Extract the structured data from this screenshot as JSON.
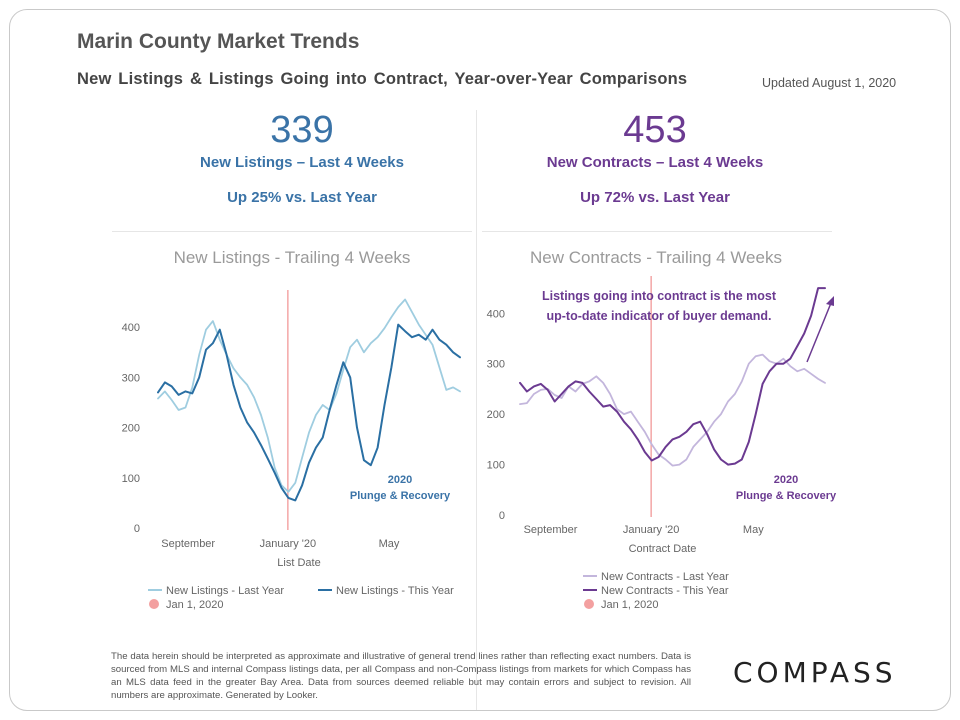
{
  "page": {
    "title": "Marin County Market Trends",
    "subtitle": "New Listings & Listings Going into Contract, Year-over-Year Comparisons",
    "updated": "Updated August 1, 2020",
    "footer": "The data herein should be interpreted as approximate and illustrative of general trend lines rather than reflecting exact numbers. Data is sourced from MLS and internal Compass listings data, per all Compass and non-Compass listings from markets for which Compass has an MLS data feed in the greater Bay Area. Data from sources deemed reliable but may contain errors and subject to revision. All numbers are approximate. Generated by Looker.",
    "logo": "COMPASS"
  },
  "kpis": {
    "listings": {
      "value": "339",
      "label": "New Listings – Last 4 Weeks",
      "change": "Up 25% vs. Last Year"
    },
    "contracts": {
      "value": "453",
      "label": "New Contracts – Last 4 Weeks",
      "change": "Up 72% vs. Last Year"
    }
  },
  "colors": {
    "listings_last": "#9fcde0",
    "listings_this": "#2a6fa3",
    "contracts_last": "#c3b6dc",
    "contracts_this": "#6b3a91",
    "jan_marker": "#f3a0a0",
    "listings_text": "#3a73a7",
    "contracts_text": "#6b3a91"
  },
  "chart_data": [
    {
      "type": "line",
      "title": "New Listings - Trailing 4 Weeks",
      "xlabel": "List Date",
      "ylabel": "",
      "ylim": [
        0,
        470
      ],
      "yticks": [
        0,
        100,
        200,
        300,
        400
      ],
      "x_tick_labels": [
        "September",
        "January '20",
        "May"
      ],
      "x_tick_positions": [
        0.1,
        0.43,
        0.765
      ],
      "marker_x": 0.43,
      "marker_label": "Jan 1, 2020",
      "annotation": [
        "2020",
        "Plunge & Recovery"
      ],
      "grid": false,
      "legend_placement": "bottom",
      "series": [
        {
          "name": "New Listings - Last Year",
          "color_key": "listings_last",
          "values": [
            258,
            272,
            255,
            235,
            240,
            280,
            345,
            395,
            412,
            375,
            345,
            318,
            300,
            285,
            260,
            225,
            180,
            120,
            85,
            72,
            90,
            140,
            190,
            225,
            245,
            235,
            268,
            315,
            360,
            375,
            350,
            368,
            380,
            398,
            420,
            440,
            455,
            430,
            405,
            385,
            365,
            320,
            275,
            280,
            272
          ]
        },
        {
          "name": "New Listings - This Year",
          "color_key": "listings_this",
          "values": [
            270,
            290,
            282,
            265,
            272,
            268,
            300,
            355,
            368,
            395,
            345,
            285,
            240,
            210,
            190,
            165,
            138,
            110,
            80,
            60,
            55,
            85,
            130,
            160,
            180,
            235,
            285,
            330,
            300,
            200,
            135,
            125,
            160,
            245,
            320,
            405,
            392,
            380,
            385,
            375,
            395,
            375,
            365,
            350,
            340
          ]
        }
      ]
    },
    {
      "type": "line",
      "title": "New Contracts - Trailing 4 Weeks",
      "xlabel": "Contract Date",
      "ylabel": "",
      "ylim": [
        0,
        470
      ],
      "yticks": [
        0,
        100,
        200,
        300,
        400
      ],
      "x_tick_labels": [
        "September",
        "January '20",
        "May"
      ],
      "x_tick_positions": [
        0.1,
        0.43,
        0.765
      ],
      "marker_x": 0.43,
      "marker_label": "Jan 1, 2020",
      "annotation": [
        "2020",
        "Plunge & Recovery"
      ],
      "callout": [
        "Listings going into contract is the most",
        "up-to-date indicator of buyer demand."
      ],
      "grid": false,
      "legend_placement": "bottom",
      "series": [
        {
          "name": "New Contracts - Last Year",
          "color_key": "contracts_last",
          "values": [
            220,
            222,
            240,
            248,
            250,
            238,
            232,
            255,
            245,
            260,
            265,
            275,
            262,
            240,
            210,
            200,
            205,
            185,
            165,
            140,
            120,
            110,
            98,
            100,
            110,
            135,
            150,
            165,
            185,
            200,
            225,
            240,
            265,
            300,
            315,
            318,
            305,
            300,
            310,
            295,
            285,
            290,
            280,
            270,
            262
          ]
        },
        {
          "name": "New Contracts - This Year",
          "color_key": "contracts_this",
          "values": [
            262,
            245,
            255,
            260,
            248,
            225,
            240,
            255,
            265,
            262,
            245,
            230,
            215,
            218,
            205,
            185,
            170,
            150,
            125,
            108,
            115,
            135,
            150,
            155,
            165,
            180,
            185,
            160,
            130,
            110,
            100,
            102,
            110,
            145,
            200,
            260,
            285,
            300,
            300,
            310,
            335,
            360,
            395,
            450,
            450
          ]
        }
      ]
    }
  ]
}
